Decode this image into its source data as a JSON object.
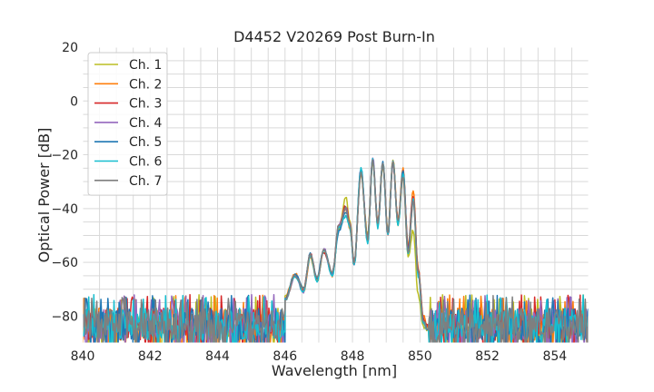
{
  "chart_data": {
    "type": "line",
    "title": "D4452 V20269 Post Burn-In",
    "xlabel": "Wavelength [nm]",
    "ylabel": "Optical Power [dB]",
    "xlim": [
      840,
      855
    ],
    "ylim": [
      -90,
      20
    ],
    "xticks": [
      840,
      842,
      844,
      846,
      848,
      850,
      852,
      854
    ],
    "yticks": [
      -80,
      -60,
      -40,
      -20,
      0,
      20
    ],
    "grid": true,
    "legend_position": "top-left",
    "noise_floor": {
      "mean": -83,
      "range": [
        -90,
        -72
      ]
    },
    "series": [
      {
        "name": "Ch. 1",
        "color": "#bcbd22",
        "x": [
          846.0,
          846.3,
          846.55,
          846.75,
          846.95,
          847.15,
          847.4,
          847.6,
          847.8,
          847.92,
          848.05,
          848.25,
          848.45,
          848.6,
          848.75,
          848.9,
          849.05,
          849.2,
          849.35,
          849.5,
          849.65,
          849.8,
          849.95,
          850.1,
          850.25
        ],
        "y": [
          -73,
          -65,
          -70,
          -58,
          -66,
          -56,
          -64,
          -48,
          -36,
          -44,
          -60,
          -27,
          -50,
          -23,
          -46,
          -24,
          -48,
          -22,
          -46,
          -28,
          -58,
          -48,
          -72,
          -84,
          -85
        ]
      },
      {
        "name": "Ch. 2",
        "color": "#ff7f0e",
        "x": [
          846.0,
          846.3,
          846.55,
          846.75,
          846.95,
          847.15,
          847.4,
          847.6,
          847.8,
          847.92,
          848.05,
          848.25,
          848.45,
          848.6,
          848.75,
          848.9,
          849.05,
          849.2,
          849.35,
          849.5,
          849.65,
          849.8,
          849.95,
          850.1,
          850.25
        ],
        "y": [
          -73,
          -64,
          -71,
          -58,
          -67,
          -55,
          -65,
          -47,
          -40,
          -47,
          -61,
          -26,
          -52,
          -22,
          -45,
          -23,
          -49,
          -22,
          -44,
          -25,
          -54,
          -33,
          -62,
          -80,
          -84
        ]
      },
      {
        "name": "Ch. 3",
        "color": "#d62728",
        "x": [
          846.0,
          846.3,
          846.55,
          846.75,
          846.95,
          847.15,
          847.4,
          847.6,
          847.8,
          847.92,
          848.05,
          848.25,
          848.45,
          848.6,
          848.75,
          848.9,
          849.05,
          849.2,
          849.35,
          849.5,
          849.65,
          849.8,
          849.95,
          850.1,
          850.25
        ],
        "y": [
          -74,
          -65,
          -70,
          -57,
          -66,
          -56,
          -64,
          -46,
          -39,
          -45,
          -60,
          -26,
          -51,
          -22,
          -46,
          -23,
          -50,
          -23,
          -45,
          -26,
          -55,
          -35,
          -63,
          -81,
          -84
        ]
      },
      {
        "name": "Ch. 4",
        "color": "#9467bd",
        "x": [
          846.0,
          846.3,
          846.55,
          846.75,
          846.95,
          847.15,
          847.4,
          847.6,
          847.8,
          847.92,
          848.05,
          848.25,
          848.45,
          848.6,
          848.75,
          848.9,
          849.05,
          849.2,
          849.35,
          849.5,
          849.65,
          849.8,
          849.95,
          850.1,
          850.25
        ],
        "y": [
          -74,
          -65,
          -71,
          -57,
          -66,
          -55,
          -65,
          -46,
          -40,
          -46,
          -60,
          -25,
          -52,
          -21,
          -46,
          -23,
          -49,
          -23,
          -45,
          -27,
          -56,
          -36,
          -64,
          -82,
          -85
        ]
      },
      {
        "name": "Ch. 5",
        "color": "#1f77b4",
        "x": [
          846.0,
          846.3,
          846.55,
          846.75,
          846.95,
          847.15,
          847.4,
          847.6,
          847.8,
          847.92,
          848.05,
          848.25,
          848.45,
          848.6,
          848.75,
          848.9,
          849.05,
          849.2,
          849.35,
          849.5,
          849.65,
          849.8,
          849.95,
          850.1,
          850.25
        ],
        "y": [
          -74,
          -64,
          -70,
          -57,
          -66,
          -55,
          -64,
          -48,
          -41,
          -46,
          -61,
          -26,
          -52,
          -22,
          -46,
          -23,
          -50,
          -23,
          -46,
          -26,
          -56,
          -36,
          -64,
          -82,
          -85
        ]
      },
      {
        "name": "Ch. 6",
        "color": "#17becf",
        "x": [
          846.0,
          846.3,
          846.55,
          846.75,
          846.95,
          847.15,
          847.4,
          847.6,
          847.8,
          847.92,
          848.05,
          848.25,
          848.45,
          848.6,
          848.75,
          848.9,
          849.05,
          849.2,
          849.35,
          849.5,
          849.65,
          849.8,
          849.95,
          850.1,
          850.25
        ],
        "y": [
          -74,
          -65,
          -71,
          -57,
          -67,
          -55,
          -65,
          -47,
          -43,
          -47,
          -61,
          -25,
          -53,
          -22,
          -47,
          -23,
          -50,
          -22,
          -46,
          -27,
          -57,
          -37,
          -65,
          -83,
          -85
        ]
      },
      {
        "name": "Ch. 7",
        "color": "#7f7f7f",
        "x": [
          846.0,
          846.3,
          846.55,
          846.75,
          846.95,
          847.15,
          847.4,
          847.6,
          847.8,
          847.92,
          848.05,
          848.25,
          848.45,
          848.6,
          848.75,
          848.9,
          849.05,
          849.2,
          849.35,
          849.5,
          849.65,
          849.8,
          849.95,
          850.1,
          850.25
        ],
        "y": [
          -74,
          -65,
          -70,
          -57,
          -66,
          -55,
          -64,
          -46,
          -40,
          -46,
          -60,
          -27,
          -51,
          -22,
          -46,
          -23,
          -49,
          -23,
          -45,
          -28,
          -57,
          -37,
          -64,
          -82,
          -85
        ]
      }
    ]
  }
}
